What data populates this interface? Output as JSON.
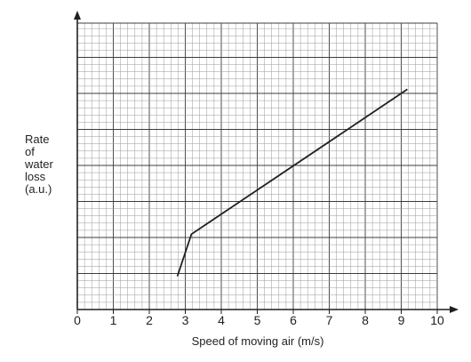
{
  "chart_data": {
    "type": "line",
    "title": "",
    "xlabel": "Speed of moving air (m/s)",
    "ylabel_lines": [
      "Rate",
      "of",
      "water",
      "loss",
      "(a.u.)"
    ],
    "xlim": [
      0,
      10
    ],
    "ylim": [
      0,
      100
    ],
    "x_ticks": [
      "0",
      "1",
      "2",
      "3",
      "4",
      "5",
      "6",
      "7",
      "8",
      "9",
      "10"
    ],
    "y_ticks": [],
    "grid": true,
    "legend": "none",
    "series": [
      {
        "x": [
          2.78,
          3.17,
          9.17
        ],
        "y": [
          11.6,
          26.3,
          76.9
        ]
      }
    ],
    "colors": {
      "grid_minor": "#9a9a9a",
      "grid_major": "#3c3c3c",
      "line": "#231f20",
      "axis": "#231f20"
    }
  }
}
